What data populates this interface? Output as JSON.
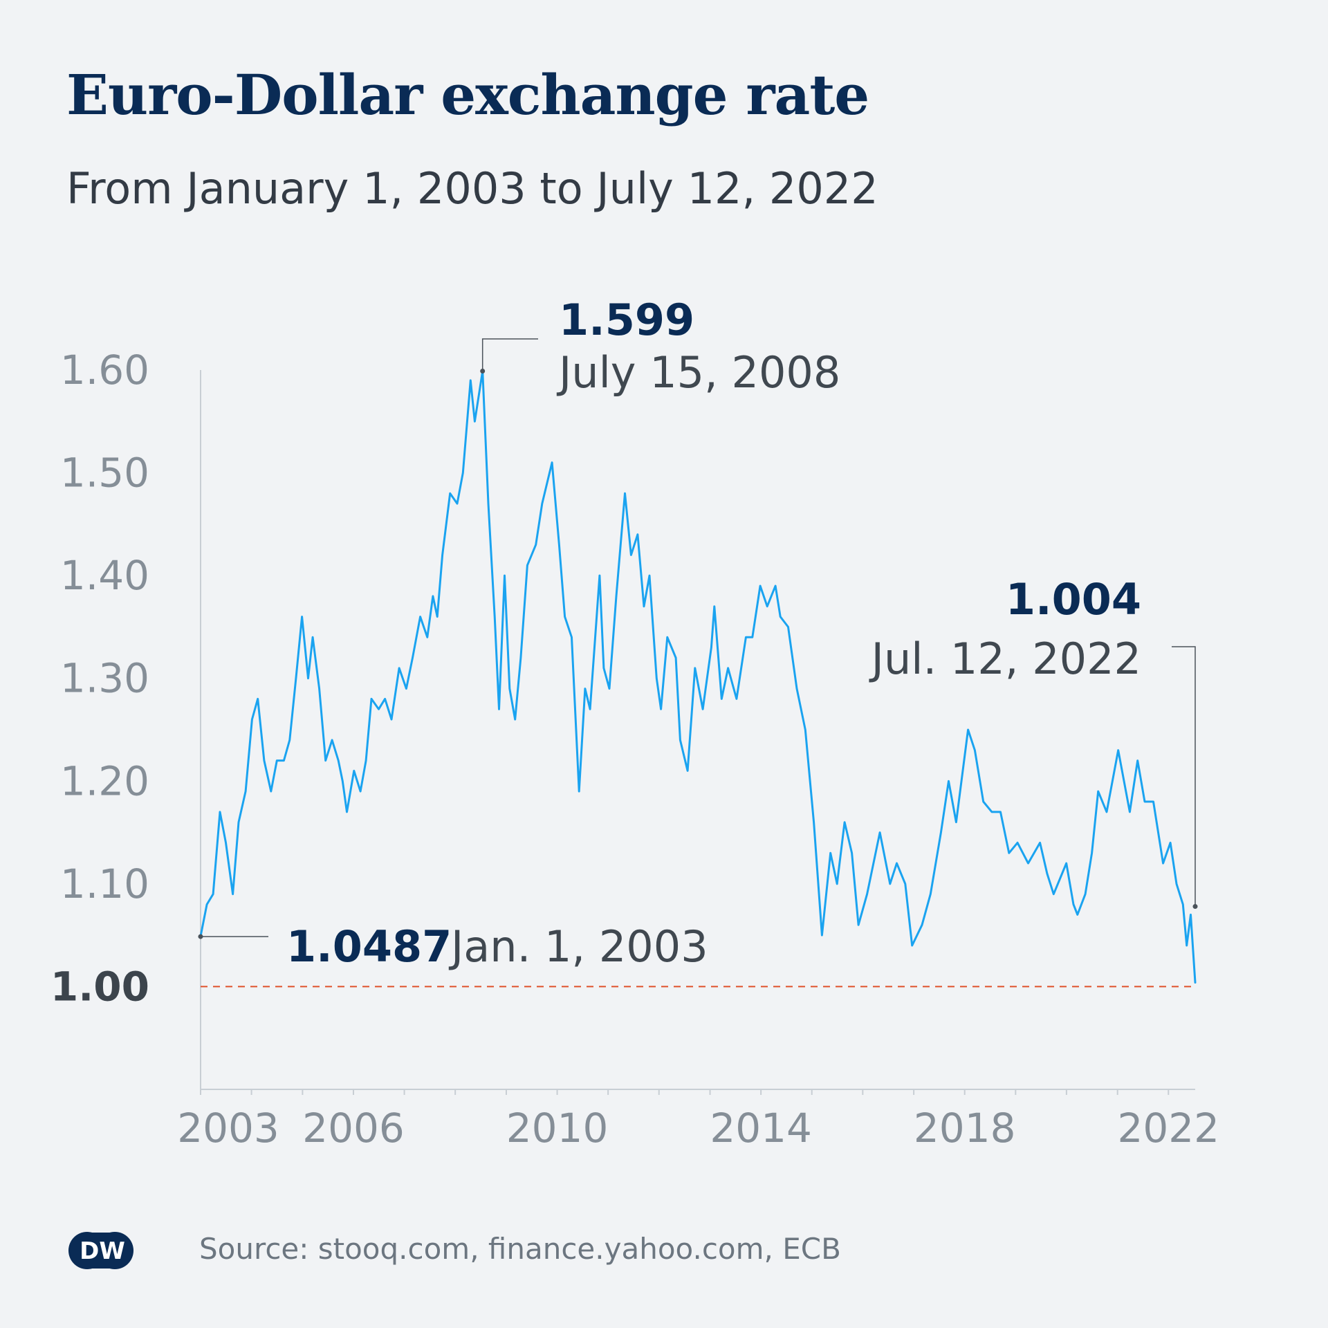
{
  "chart_data": {
    "type": "line",
    "title": "Euro-Dollar exchange rate",
    "subtitle": "From January 1, 2003 to July 12, 2022",
    "xlabel": "",
    "ylabel": "",
    "x_ticks": [
      "2003",
      "2006",
      "2010",
      "2014",
      "2018",
      "2022"
    ],
    "y_ticks": [
      "1.60",
      "1.50",
      "1.40",
      "1.30",
      "1.20",
      "1.10",
      "1.00"
    ],
    "ylim": [
      0.9,
      1.6
    ],
    "xlim": [
      "2003-01-01",
      "2022-07-12"
    ],
    "reference_line": {
      "y": 1.0,
      "color": "#e0502a",
      "style": "dashed"
    },
    "series": [
      {
        "color": "#1aa3f0",
        "points": [
          [
            "2003-01-01",
            1.049
          ],
          [
            "2003-02-15",
            1.08
          ],
          [
            "2003-04-01",
            1.09
          ],
          [
            "2003-05-20",
            1.17
          ],
          [
            "2003-07-01",
            1.14
          ],
          [
            "2003-08-20",
            1.09
          ],
          [
            "2003-10-01",
            1.16
          ],
          [
            "2003-11-20",
            1.19
          ],
          [
            "2004-01-05",
            1.26
          ],
          [
            "2004-02-15",
            1.28
          ],
          [
            "2004-04-01",
            1.22
          ],
          [
            "2004-05-20",
            1.19
          ],
          [
            "2004-07-01",
            1.22
          ],
          [
            "2004-08-20",
            1.22
          ],
          [
            "2004-10-01",
            1.24
          ],
          [
            "2004-11-15",
            1.3
          ],
          [
            "2004-12-28",
            1.36
          ],
          [
            "2005-02-10",
            1.3
          ],
          [
            "2005-03-15",
            1.34
          ],
          [
            "2005-05-01",
            1.29
          ],
          [
            "2005-06-15",
            1.22
          ],
          [
            "2005-08-01",
            1.24
          ],
          [
            "2005-09-15",
            1.22
          ],
          [
            "2005-10-15",
            1.2
          ],
          [
            "2005-11-15",
            1.17
          ],
          [
            "2006-01-05",
            1.21
          ],
          [
            "2006-02-20",
            1.19
          ],
          [
            "2006-04-01",
            1.22
          ],
          [
            "2006-05-10",
            1.28
          ],
          [
            "2006-07-01",
            1.27
          ],
          [
            "2006-08-15",
            1.28
          ],
          [
            "2006-10-01",
            1.26
          ],
          [
            "2006-11-25",
            1.31
          ],
          [
            "2007-01-15",
            1.29
          ],
          [
            "2007-03-01",
            1.32
          ],
          [
            "2007-04-25",
            1.36
          ],
          [
            "2007-06-15",
            1.34
          ],
          [
            "2007-07-25",
            1.38
          ],
          [
            "2007-08-25",
            1.36
          ],
          [
            "2007-10-01",
            1.42
          ],
          [
            "2007-11-25",
            1.48
          ],
          [
            "2008-01-15",
            1.47
          ],
          [
            "2008-02-25",
            1.5
          ],
          [
            "2008-04-20",
            1.59
          ],
          [
            "2008-05-20",
            1.55
          ],
          [
            "2008-07-15",
            1.599
          ],
          [
            "2008-08-25",
            1.47
          ],
          [
            "2008-10-10",
            1.36
          ],
          [
            "2008-11-10",
            1.27
          ],
          [
            "2008-12-20",
            1.4
          ],
          [
            "2009-01-25",
            1.29
          ],
          [
            "2009-03-05",
            1.26
          ],
          [
            "2009-04-15",
            1.32
          ],
          [
            "2009-06-01",
            1.41
          ],
          [
            "2009-08-01",
            1.43
          ],
          [
            "2009-09-15",
            1.47
          ],
          [
            "2009-11-25",
            1.51
          ],
          [
            "2010-01-15",
            1.43
          ],
          [
            "2010-02-25",
            1.36
          ],
          [
            "2010-04-15",
            1.34
          ],
          [
            "2010-06-07",
            1.19
          ],
          [
            "2010-07-20",
            1.29
          ],
          [
            "2010-08-25",
            1.27
          ],
          [
            "2010-11-01",
            1.4
          ],
          [
            "2010-12-01",
            1.31
          ],
          [
            "2011-01-10",
            1.29
          ],
          [
            "2011-03-01",
            1.38
          ],
          [
            "2011-05-02",
            1.48
          ],
          [
            "2011-06-15",
            1.42
          ],
          [
            "2011-08-01",
            1.44
          ],
          [
            "2011-09-15",
            1.37
          ],
          [
            "2011-10-25",
            1.4
          ],
          [
            "2011-12-15",
            1.3
          ],
          [
            "2012-01-15",
            1.27
          ],
          [
            "2012-03-01",
            1.34
          ],
          [
            "2012-05-01",
            1.32
          ],
          [
            "2012-06-01",
            1.24
          ],
          [
            "2012-07-24",
            1.21
          ],
          [
            "2012-09-15",
            1.31
          ],
          [
            "2012-11-10",
            1.27
          ],
          [
            "2013-01-10",
            1.33
          ],
          [
            "2013-02-01",
            1.37
          ],
          [
            "2013-03-25",
            1.28
          ],
          [
            "2013-05-10",
            1.31
          ],
          [
            "2013-07-10",
            1.28
          ],
          [
            "2013-09-15",
            1.34
          ],
          [
            "2013-11-01",
            1.34
          ],
          [
            "2013-12-27",
            1.39
          ],
          [
            "2014-02-15",
            1.37
          ],
          [
            "2014-04-15",
            1.39
          ],
          [
            "2014-05-20",
            1.36
          ],
          [
            "2014-07-15",
            1.35
          ],
          [
            "2014-09-15",
            1.29
          ],
          [
            "2014-11-15",
            1.25
          ],
          [
            "2015-01-15",
            1.16
          ],
          [
            "2015-03-15",
            1.05
          ],
          [
            "2015-05-15",
            1.13
          ],
          [
            "2015-07-01",
            1.1
          ],
          [
            "2015-08-24",
            1.16
          ],
          [
            "2015-10-15",
            1.13
          ],
          [
            "2015-12-01",
            1.06
          ],
          [
            "2016-02-01",
            1.09
          ],
          [
            "2016-05-03",
            1.15
          ],
          [
            "2016-07-15",
            1.1
          ],
          [
            "2016-09-01",
            1.12
          ],
          [
            "2016-11-01",
            1.1
          ],
          [
            "2016-12-20",
            1.04
          ],
          [
            "2017-03-01",
            1.06
          ],
          [
            "2017-05-01",
            1.09
          ],
          [
            "2017-07-15",
            1.15
          ],
          [
            "2017-09-08",
            1.2
          ],
          [
            "2017-11-01",
            1.16
          ],
          [
            "2018-01-25",
            1.25
          ],
          [
            "2018-03-15",
            1.23
          ],
          [
            "2018-05-15",
            1.18
          ],
          [
            "2018-07-15",
            1.17
          ],
          [
            "2018-09-15",
            1.17
          ],
          [
            "2018-11-15",
            1.13
          ],
          [
            "2019-01-15",
            1.14
          ],
          [
            "2019-04-01",
            1.12
          ],
          [
            "2019-06-25",
            1.14
          ],
          [
            "2019-08-15",
            1.11
          ],
          [
            "2019-10-01",
            1.09
          ],
          [
            "2019-12-31",
            1.12
          ],
          [
            "2020-02-20",
            1.08
          ],
          [
            "2020-03-20",
            1.07
          ],
          [
            "2020-05-15",
            1.09
          ],
          [
            "2020-07-01",
            1.13
          ],
          [
            "2020-08-15",
            1.19
          ],
          [
            "2020-10-15",
            1.17
          ],
          [
            "2021-01-06",
            1.23
          ],
          [
            "2021-03-30",
            1.17
          ],
          [
            "2021-05-25",
            1.22
          ],
          [
            "2021-07-15",
            1.18
          ],
          [
            "2021-09-15",
            1.18
          ],
          [
            "2021-11-24",
            1.12
          ],
          [
            "2022-01-15",
            1.14
          ],
          [
            "2022-02-28",
            1.1
          ],
          [
            "2022-04-15",
            1.08
          ],
          [
            "2022-05-12",
            1.04
          ],
          [
            "2022-06-10",
            1.07
          ],
          [
            "2022-07-12",
            1.004
          ]
        ]
      }
    ],
    "annotations": [
      {
        "value": "1.0487",
        "date": "Jan. 1, 2003",
        "x": "2003-01-01",
        "y": 1.0487
      },
      {
        "value": "1.599",
        "date": "July 15, 2008",
        "x": "2008-07-15",
        "y": 1.599
      },
      {
        "value": "1.004",
        "date": "Jul. 12, 2022",
        "x": "2022-07-12",
        "y": 1.004
      }
    ]
  },
  "source": "Source: stooq.com, finance.yahoo.com, ECB",
  "logo_text": "DW"
}
